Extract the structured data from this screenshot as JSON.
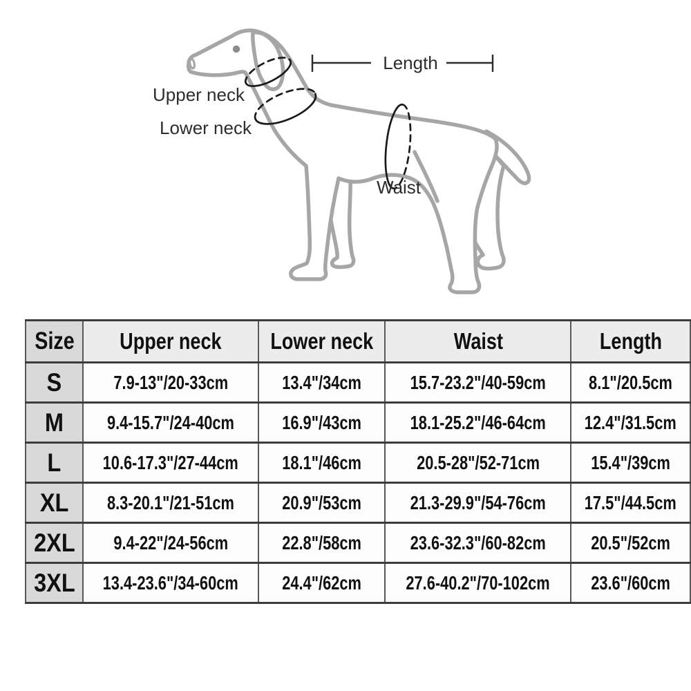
{
  "diagram": {
    "labels": {
      "upper_neck": "Upper neck",
      "lower_neck": "Lower neck",
      "waist": "Waist",
      "length": "Length"
    }
  },
  "size_chart": {
    "columns": [
      "Size",
      "Upper neck",
      "Lower neck",
      "Waist",
      "Length"
    ],
    "rows": [
      {
        "size": "S",
        "upper_neck": "7.9-13\"/20-33cm",
        "lower_neck": "13.4\"/34cm",
        "waist": "15.7-23.2\"/40-59cm",
        "length": "8.1\"/20.5cm"
      },
      {
        "size": "M",
        "upper_neck": "9.4-15.7\"/24-40cm",
        "lower_neck": "16.9\"/43cm",
        "waist": "18.1-25.2\"/46-64cm",
        "length": "12.4\"/31.5cm"
      },
      {
        "size": "L",
        "upper_neck": "10.6-17.3\"/27-44cm",
        "lower_neck": "18.1\"/46cm",
        "waist": "20.5-28\"/52-71cm",
        "length": "15.4\"/39cm"
      },
      {
        "size": "XL",
        "upper_neck": "8.3-20.1\"/21-51cm",
        "lower_neck": "20.9\"/53cm",
        "waist": "21.3-29.9\"/54-76cm",
        "length": "17.5\"/44.5cm"
      },
      {
        "size": "2XL",
        "upper_neck": "9.4-22\"/24-56cm",
        "lower_neck": "22.8\"/58cm",
        "waist": "23.6-32.3\"/60-82cm",
        "length": "20.5\"/52cm"
      },
      {
        "size": "3XL",
        "upper_neck": "13.4-23.6\"/34-60cm",
        "lower_neck": "24.4\"/62cm",
        "waist": "27.6-40.2\"/70-102cm",
        "length": "23.6\"/60cm"
      }
    ]
  },
  "colors": {
    "dog_outline": "#a6a6a6",
    "measure_line": "#1a1a1a",
    "label_text": "#2d2d2d",
    "header_bg": "#ececec",
    "size_col_bg": "#d9d9d9",
    "row_border": "#3c3c3c",
    "col_border": "#585858",
    "cell_bg": "#fdfdfd"
  }
}
